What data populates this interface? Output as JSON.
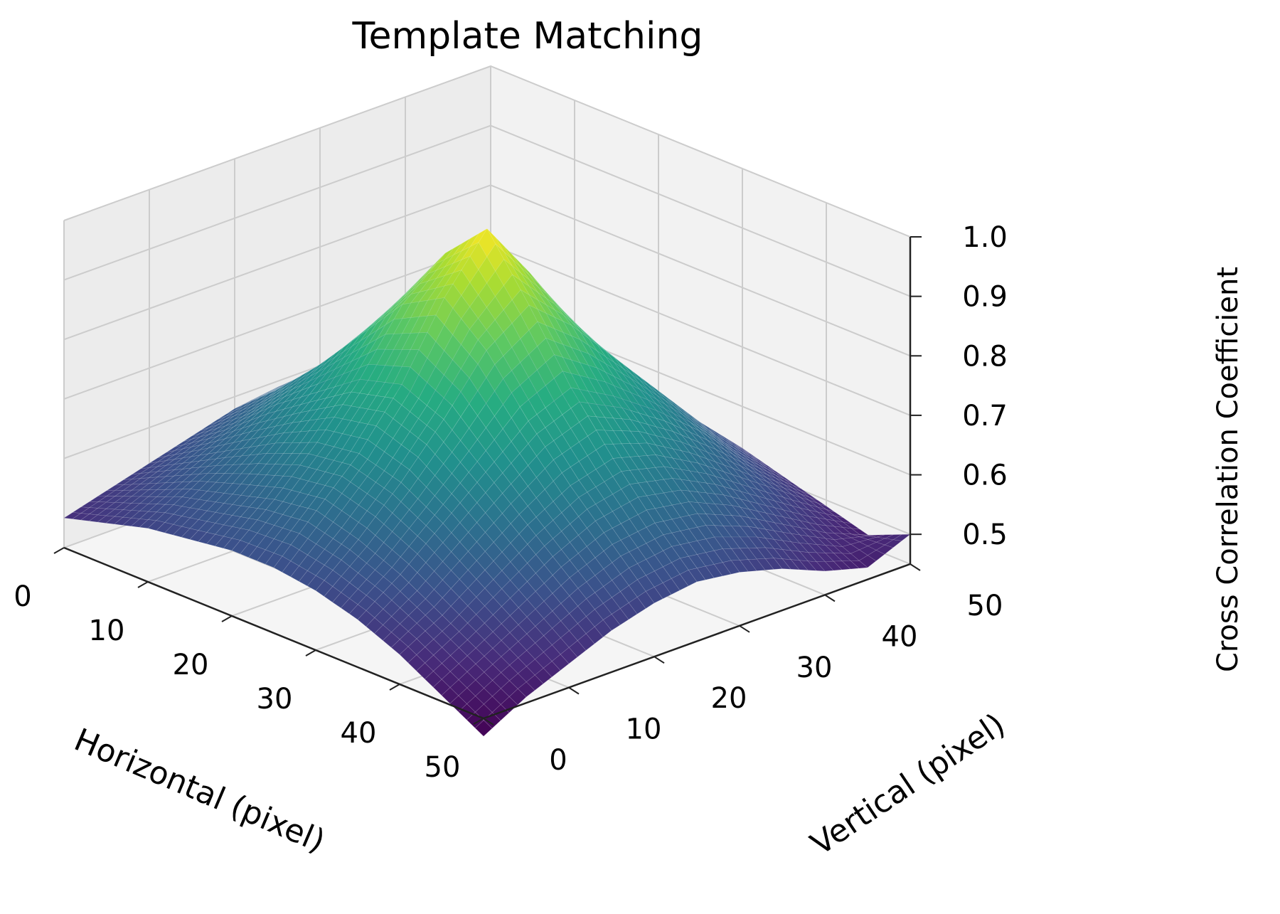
{
  "chart_data": {
    "type": "surface",
    "title": "Template Matching",
    "xlabel": "Horizontal (pixel)",
    "ylabel": "Vertical (pixel)",
    "zlabel": "Cross Correlation Coefficient",
    "x_ticks": [
      0,
      10,
      20,
      30,
      40,
      50
    ],
    "y_ticks": [
      0,
      10,
      20,
      30,
      40,
      50
    ],
    "z_ticks": [
      0.5,
      0.6,
      0.7,
      0.8,
      0.9,
      1.0
    ],
    "z_tick_labels": [
      "0.5",
      "0.6",
      "0.7",
      "0.8",
      "0.9",
      "1.0"
    ],
    "xlim": [
      0,
      50
    ],
    "ylim": [
      0,
      50
    ],
    "zlim": [
      0.45,
      1.0
    ],
    "grid": true,
    "colormap": "viridis",
    "peak": {
      "x": 25,
      "y": 25,
      "z": 1.0
    },
    "corner_values": [
      {
        "x": 0,
        "y": 0,
        "z": 0.5
      },
      {
        "x": 50,
        "y": 0,
        "z": 0.42
      },
      {
        "x": 0,
        "y": 50,
        "z": 0.43
      },
      {
        "x": 50,
        "y": 50,
        "z": 0.5
      }
    ],
    "surface_grid": {
      "x": [
        0,
        5,
        10,
        15,
        20,
        25,
        30,
        35,
        40,
        45,
        50
      ],
      "y": [
        0,
        5,
        10,
        15,
        20,
        25,
        30,
        35,
        40,
        45,
        50
      ],
      "z": [
        [
          0.5,
          0.52,
          0.54,
          0.56,
          0.58,
          0.59,
          0.57,
          0.54,
          0.5,
          0.46,
          0.43
        ],
        [
          0.52,
          0.55,
          0.58,
          0.61,
          0.64,
          0.65,
          0.63,
          0.59,
          0.54,
          0.5,
          0.46
        ],
        [
          0.54,
          0.58,
          0.62,
          0.67,
          0.71,
          0.73,
          0.7,
          0.65,
          0.59,
          0.54,
          0.49
        ],
        [
          0.55,
          0.6,
          0.66,
          0.72,
          0.79,
          0.83,
          0.78,
          0.71,
          0.64,
          0.57,
          0.51
        ],
        [
          0.56,
          0.62,
          0.69,
          0.77,
          0.87,
          0.93,
          0.86,
          0.77,
          0.68,
          0.6,
          0.53
        ],
        [
          0.56,
          0.63,
          0.7,
          0.79,
          0.91,
          1.0,
          0.9,
          0.79,
          0.7,
          0.61,
          0.54
        ],
        [
          0.55,
          0.61,
          0.68,
          0.76,
          0.85,
          0.9,
          0.84,
          0.76,
          0.68,
          0.6,
          0.53
        ],
        [
          0.53,
          0.58,
          0.64,
          0.7,
          0.76,
          0.79,
          0.75,
          0.7,
          0.64,
          0.57,
          0.51
        ],
        [
          0.5,
          0.54,
          0.59,
          0.64,
          0.68,
          0.7,
          0.68,
          0.64,
          0.59,
          0.54,
          0.49
        ],
        [
          0.46,
          0.5,
          0.54,
          0.58,
          0.61,
          0.62,
          0.61,
          0.58,
          0.54,
          0.5,
          0.47
        ],
        [
          0.42,
          0.46,
          0.49,
          0.52,
          0.54,
          0.55,
          0.54,
          0.52,
          0.49,
          0.47,
          0.5
        ]
      ]
    }
  }
}
